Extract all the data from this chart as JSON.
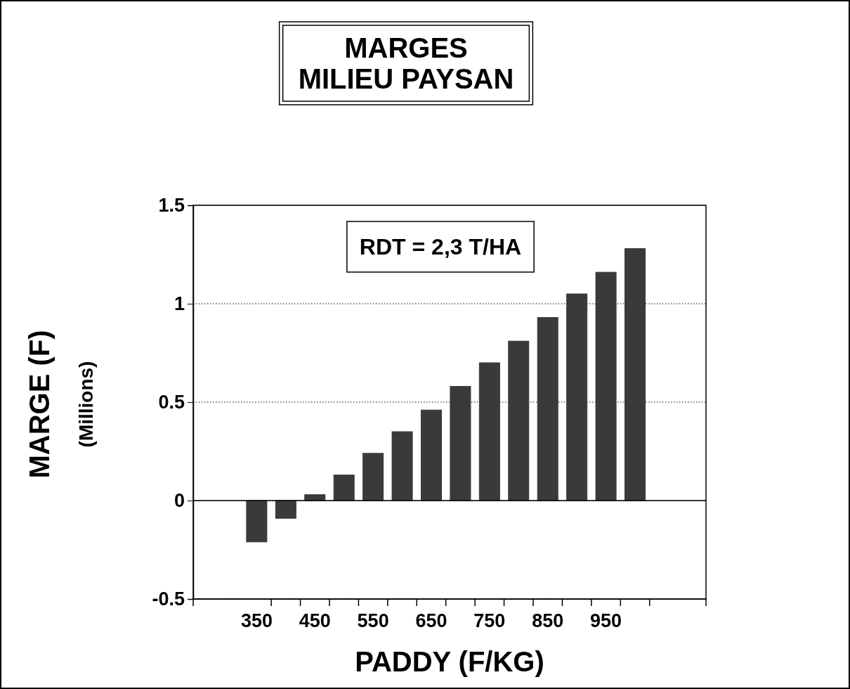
{
  "chart_data": {
    "type": "bar",
    "title": "MARGES\nMILIEU PAYSAN",
    "xlabel": "PADDY (F/KG)",
    "ylabel": "MARGE (F)\n(Millions)",
    "categories": [
      "350",
      null,
      "450",
      null,
      "550",
      null,
      "650",
      null,
      "750",
      null,
      "850",
      null,
      "950",
      null
    ],
    "values": [
      -0.21,
      -0.09,
      0.03,
      0.13,
      0.24,
      0.35,
      0.46,
      0.58,
      0.7,
      0.81,
      0.93,
      1.05,
      1.16,
      1.28
    ],
    "color": "#3a3a3a",
    "ylim": [
      -0.5,
      1.5
    ],
    "yticks": [
      -0.5,
      0,
      0.5,
      1,
      1.5
    ],
    "grid": "y",
    "annotations": [
      "RDT = 2,3 T/HA"
    ]
  }
}
